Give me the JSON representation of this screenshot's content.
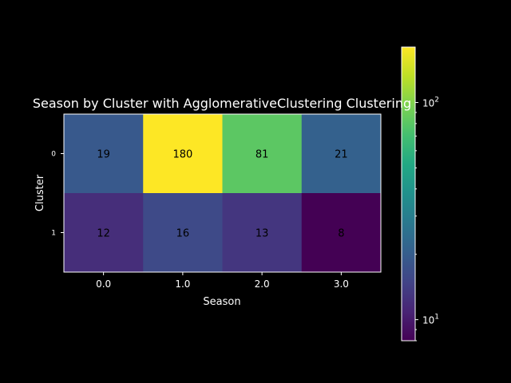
{
  "chart_data": {
    "type": "heatmap",
    "title": "Season by Cluster with AgglomerativeClustering Clustering",
    "xlabel": "Season",
    "ylabel": "Cluster",
    "x_categories": [
      "0.0",
      "1.0",
      "2.0",
      "3.0"
    ],
    "y_categories": [
      "0",
      "1"
    ],
    "values": [
      [
        19,
        180,
        81,
        21
      ],
      [
        12,
        16,
        13,
        8
      ]
    ],
    "colormap": "viridis",
    "color_scale": "log",
    "color_range": [
      8,
      180
    ],
    "colorbar_ticks": [
      {
        "value": 10,
        "base": "10",
        "exp": "1"
      },
      {
        "value": 100,
        "base": "10",
        "exp": "2"
      }
    ],
    "colors": {
      "background": "#000000",
      "text": "#ffffff",
      "frame": "#ffffff"
    }
  }
}
